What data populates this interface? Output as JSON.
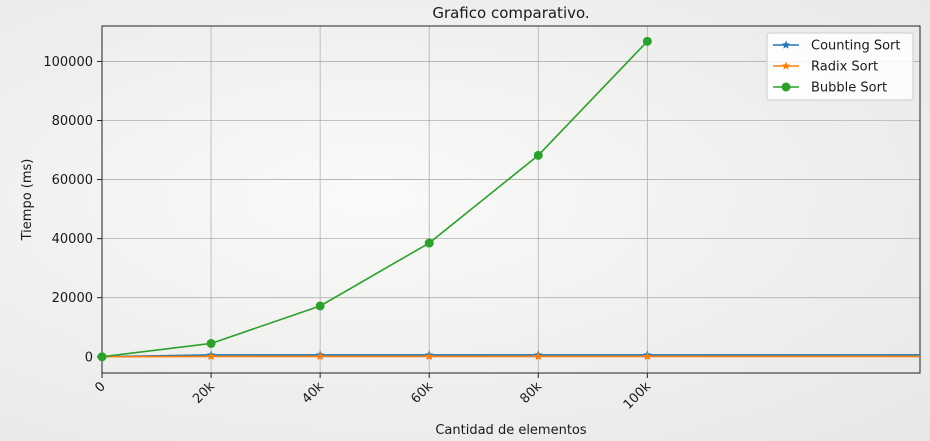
{
  "chart_data": {
    "type": "line",
    "title": "Grafico comparativo.",
    "xlabel": "Cantidad de elementos",
    "ylabel": "Tiempo (ms)",
    "x": [
      0,
      20000,
      40000,
      60000,
      80000,
      100000
    ],
    "x_tick_labels": [
      "0",
      "20k",
      "40k",
      "60k",
      "80k",
      "100k"
    ],
    "y_ticks": [
      0,
      20000,
      40000,
      60000,
      80000,
      100000
    ],
    "y_tick_labels": [
      "0",
      "20000",
      "40000",
      "60000",
      "80000",
      "100000"
    ],
    "xlim": [
      0,
      150000
    ],
    "ylim": [
      -5500,
      112000
    ],
    "grid": true,
    "legend_position": "top-right",
    "series": [
      {
        "name": "Counting Sort",
        "color": "#1f77b4",
        "marker": "star",
        "values": [
          0,
          600,
          600,
          600,
          600,
          600
        ]
      },
      {
        "name": "Radix Sort",
        "color": "#ff7f0e",
        "marker": "star",
        "values": [
          0,
          100,
          100,
          100,
          100,
          100
        ]
      },
      {
        "name": "Bubble Sort",
        "color": "#2ca02c",
        "marker": "circle",
        "values": [
          0,
          4500,
          17200,
          38500,
          68200,
          106800
        ]
      }
    ]
  }
}
